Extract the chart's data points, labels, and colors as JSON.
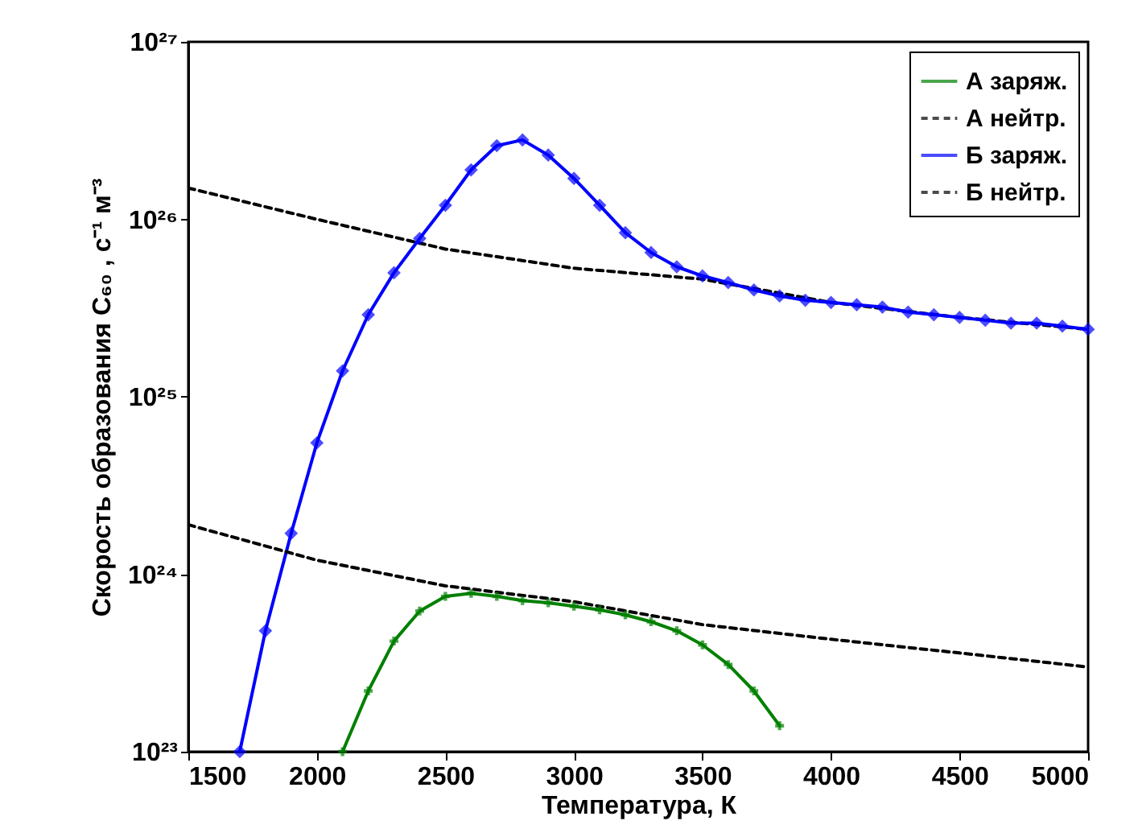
{
  "chart_data": {
    "type": "line",
    "xlabel": "Температура, К",
    "ylabel": "Скорость образования C₆₀ , с⁻¹ м⁻³",
    "log": "y",
    "grid": false,
    "legend": "top right",
    "xlim": [
      1500,
      5000
    ],
    "xticks": [
      1500,
      2000,
      2500,
      3000,
      3500,
      4000,
      4500,
      5000
    ],
    "ylim": [
      1e+23,
      1e+27
    ],
    "yticks": [
      {
        "value": 1e+23,
        "label": "10²³"
      },
      {
        "value": 1e+24,
        "label": "10²⁴"
      },
      {
        "value": 1e+25,
        "label": "10²⁵"
      },
      {
        "value": 1e+26,
        "label": "10²⁶"
      },
      {
        "value": 1e+27,
        "label": "10²⁷"
      }
    ],
    "series": [
      {
        "name": "А заряж.",
        "color": "#008000",
        "marker": "cross",
        "line_style": "solid",
        "x": [
          2100,
          2200,
          2300,
          2400,
          2500,
          2600,
          2700,
          2800,
          2900,
          3000,
          3100,
          3200,
          3300,
          3400,
          3500,
          3600,
          3700,
          3800
        ],
        "values": [
          1e+23,
          2.2e+23,
          4.2e+23,
          6.2e+23,
          7.5e+23,
          7.8e+23,
          7.5e+23,
          7.1e+23,
          6.9e+23,
          6.6e+23,
          6.3e+23,
          5.9e+23,
          5.4e+23,
          4.8e+23,
          4e+23,
          3.1e+23,
          2.2e+23,
          1.4e+23
        ]
      },
      {
        "name": "А нейтр.",
        "color": "#000000",
        "marker": "none",
        "line_style": "dashed",
        "x": [
          1500,
          2000,
          2500,
          3000,
          3500,
          4000,
          4500,
          5000
        ],
        "values": [
          1.5e+26,
          1e+26,
          6.8e+25,
          5.3e+25,
          4.6e+25,
          3.4e+25,
          2.8e+25,
          2.4e+25
        ]
      },
      {
        "name": "Б заряж.",
        "color": "#0000ff",
        "marker": "diamond",
        "line_style": "solid",
        "x": [
          1700,
          1800,
          1900,
          2000,
          2100,
          2200,
          2300,
          2400,
          2500,
          2600,
          2700,
          2800,
          2900,
          3000,
          3100,
          3200,
          3300,
          3400,
          3500,
          3600,
          3700,
          3800,
          3900,
          4000,
          4100,
          4200,
          4300,
          4400,
          4500,
          4600,
          4700,
          4800,
          4900,
          5000
        ],
        "values": [
          1e+23,
          4.8e+23,
          1.7e+24,
          5.5e+24,
          1.4e+25,
          2.9e+25,
          5e+25,
          7.8e+25,
          1.2e+26,
          1.9e+26,
          2.6e+26,
          2.8e+26,
          2.3e+26,
          1.7e+26,
          1.2e+26,
          8.4e+25,
          6.5e+25,
          5.4e+25,
          4.8e+25,
          4.4e+25,
          4e+25,
          3.7e+25,
          3.5e+25,
          3.4e+25,
          3.3e+25,
          3.2e+25,
          3e+25,
          2.9e+25,
          2.8e+25,
          2.7e+25,
          2.6e+25,
          2.6e+25,
          2.5e+25,
          2.4e+25
        ]
      },
      {
        "name": "Б нейтр.",
        "color": "#000000",
        "marker": "none",
        "line_style": "dashed",
        "x": [
          1500,
          2000,
          2500,
          3000,
          3500,
          4000,
          4500,
          5000
        ],
        "values": [
          1.9e+24,
          1.2e+24,
          8.6e+23,
          7e+23,
          5.2e+23,
          4.3e+23,
          3.6e+23,
          3e+23
        ]
      }
    ]
  }
}
